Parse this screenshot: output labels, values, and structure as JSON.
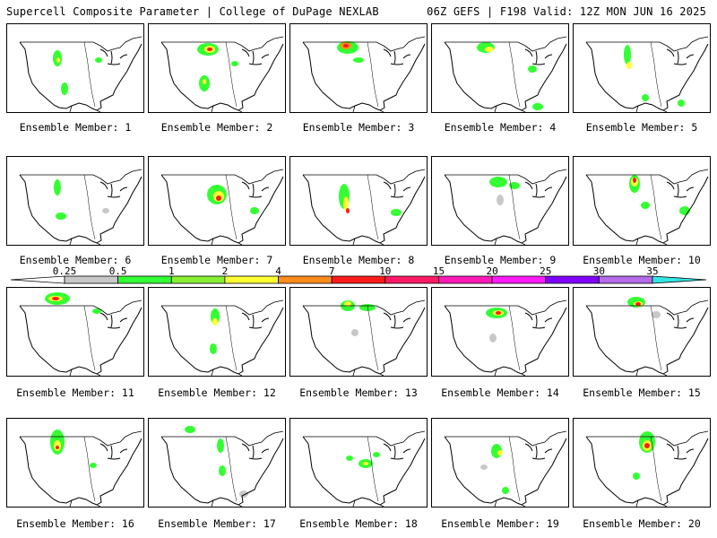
{
  "header": {
    "left": "Supercell Composite Parameter | College of DuPage NEXLAB",
    "right": "06Z GEFS | F198 Valid: 12Z MON JUN 16 2025"
  },
  "panels": [
    {
      "label": "Ensemble Member: 1"
    },
    {
      "label": "Ensemble Member: 2"
    },
    {
      "label": "Ensemble Member: 3"
    },
    {
      "label": "Ensemble Member: 4"
    },
    {
      "label": "Ensemble Member: 5"
    },
    {
      "label": "Ensemble Member: 6"
    },
    {
      "label": "Ensemble Member: 7"
    },
    {
      "label": "Ensemble Member: 8"
    },
    {
      "label": "Ensemble Member: 9"
    },
    {
      "label": "Ensemble Member: 10"
    },
    {
      "label": "Ensemble Member: 11"
    },
    {
      "label": "Ensemble Member: 12"
    },
    {
      "label": "Ensemble Member: 13"
    },
    {
      "label": "Ensemble Member: 14"
    },
    {
      "label": "Ensemble Member: 15"
    },
    {
      "label": "Ensemble Member: 16"
    },
    {
      "label": "Ensemble Member: 17"
    },
    {
      "label": "Ensemble Member: 18"
    },
    {
      "label": "Ensemble Member: 19"
    },
    {
      "label": "Ensemble Member: 20"
    }
  ],
  "colorbar": {
    "levels": [
      "0.25",
      "0.5",
      "1",
      "2",
      "4",
      "7",
      "10",
      "15",
      "20",
      "25",
      "30",
      "35"
    ],
    "colors": [
      "#c8c8c8",
      "#33ff33",
      "#88ee33",
      "#ffff33",
      "#ff8c1a",
      "#ff1a1a",
      "#ff1a66",
      "#ff1ab8",
      "#ff1aff",
      "#8000ff",
      "#b36be6",
      "#33e6e6"
    ]
  }
}
